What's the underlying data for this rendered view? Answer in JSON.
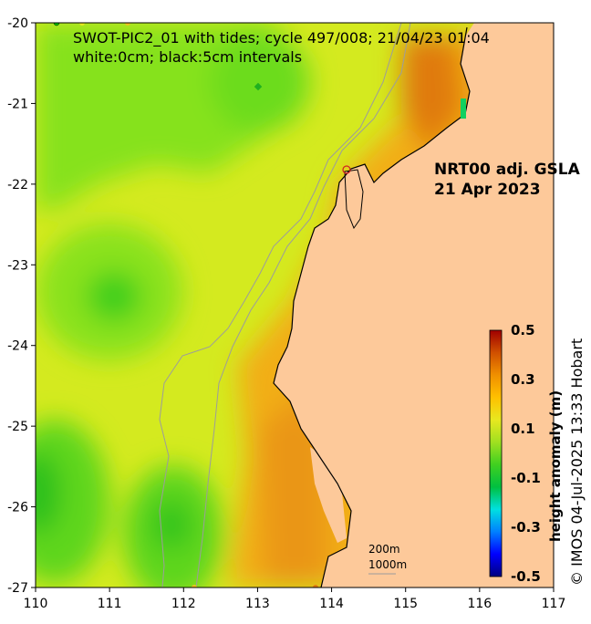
{
  "map": {
    "title_line1": "SWOT-PIC2_01 with tides; cycle 497/008; 21/04/23 01:04",
    "title_line2": "white:0cm; black:5cm intervals",
    "product_line1": "NRT00 adj. GSLA",
    "product_line2": "21 Apr 2023",
    "scale_label_1": "200m",
    "scale_label_2": "1000m",
    "credit": "© IMOS 04-Jul-2025 13:33 Hobart",
    "x_ticks": [
      {
        "v": 110,
        "label": "110"
      },
      {
        "v": 111,
        "label": "111"
      },
      {
        "v": 112,
        "label": "112"
      },
      {
        "v": 113,
        "label": "113"
      },
      {
        "v": 114,
        "label": "114"
      },
      {
        "v": 115,
        "label": "115"
      },
      {
        "v": 116,
        "label": "116"
      },
      {
        "v": 117,
        "label": "117"
      }
    ],
    "y_ticks": [
      {
        "v": -20,
        "label": "-20"
      },
      {
        "v": -21,
        "label": "-21"
      },
      {
        "v": -22,
        "label": "-22"
      },
      {
        "v": -23,
        "label": "-23"
      },
      {
        "v": -24,
        "label": "-24"
      },
      {
        "v": -25,
        "label": "-25"
      },
      {
        "v": -26,
        "label": "-26"
      },
      {
        "v": -27,
        "label": "-27"
      }
    ],
    "lon_range": [
      110,
      117
    ],
    "lat_range": [
      -27,
      -20
    ],
    "colorbar": {
      "label": "height anomaly (m)",
      "ticks": [
        {
          "v": 0.5,
          "label": "0.5"
        },
        {
          "v": 0.3,
          "label": "0.3"
        },
        {
          "v": 0.1,
          "label": "0.1"
        },
        {
          "v": -0.1,
          "label": "-0.1"
        },
        {
          "v": -0.3,
          "label": "-0.3"
        },
        {
          "v": -0.5,
          "label": "-0.5"
        }
      ],
      "range": [
        -0.5,
        0.5
      ],
      "colors": [
        "#00007f",
        "#0000ff",
        "#0080ff",
        "#00e0e0",
        "#00c040",
        "#40d020",
        "#a0e020",
        "#e8e820",
        "#ffc000",
        "#f09000",
        "#d05000",
        "#a00000"
      ]
    },
    "colors": {
      "land": "#fdc99a",
      "ocean_base": "#d4ea1f",
      "isobath": "#9c9c9c",
      "coast": "#000000"
    }
  }
}
